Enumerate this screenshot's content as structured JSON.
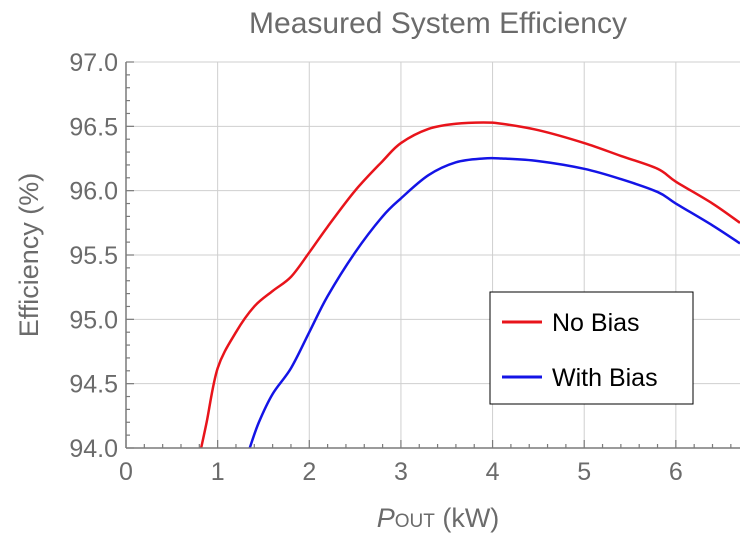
{
  "chart_data": {
    "type": "line",
    "title": "Measured System Efficiency",
    "xlabel_main": "P",
    "xlabel_sub": "OUT",
    "xlabel_unit": " (kW)",
    "ylabel": "Efficiency (%)",
    "xlim": [
      0,
      6.7
    ],
    "ylim": [
      94.0,
      97.0
    ],
    "xticks": [
      "0",
      "1",
      "2",
      "3",
      "4",
      "5",
      "6"
    ],
    "yticks": [
      "94.0",
      "94.5",
      "95.0",
      "95.5",
      "96.0",
      "96.5",
      "97.0"
    ],
    "grid": true,
    "legend_position": "lower-right",
    "series": [
      {
        "name": "No Bias",
        "color": "#e8141b",
        "x": [
          0.82,
          0.88,
          1.0,
          1.2,
          1.4,
          1.6,
          1.8,
          2.0,
          2.2,
          2.5,
          2.8,
          3.0,
          3.3,
          3.6,
          3.9,
          4.1,
          4.5,
          5.0,
          5.4,
          5.8,
          6.0,
          6.4,
          6.7
        ],
        "y": [
          94.0,
          94.2,
          94.62,
          94.9,
          95.1,
          95.22,
          95.33,
          95.52,
          95.72,
          96.0,
          96.23,
          96.37,
          96.48,
          96.52,
          96.53,
          96.52,
          96.47,
          96.37,
          96.27,
          96.17,
          96.07,
          95.9,
          95.75
        ]
      },
      {
        "name": "With Bias",
        "color": "#1414e6",
        "x": [
          1.35,
          1.45,
          1.6,
          1.8,
          2.0,
          2.2,
          2.5,
          2.8,
          3.0,
          3.3,
          3.6,
          3.9,
          4.1,
          4.5,
          5.0,
          5.4,
          5.8,
          6.0,
          6.4,
          6.7
        ],
        "y": [
          94.0,
          94.2,
          94.42,
          94.62,
          94.9,
          95.18,
          95.52,
          95.8,
          95.94,
          96.12,
          96.22,
          96.25,
          96.25,
          96.23,
          96.17,
          96.09,
          95.99,
          95.9,
          95.73,
          95.59
        ]
      }
    ]
  }
}
